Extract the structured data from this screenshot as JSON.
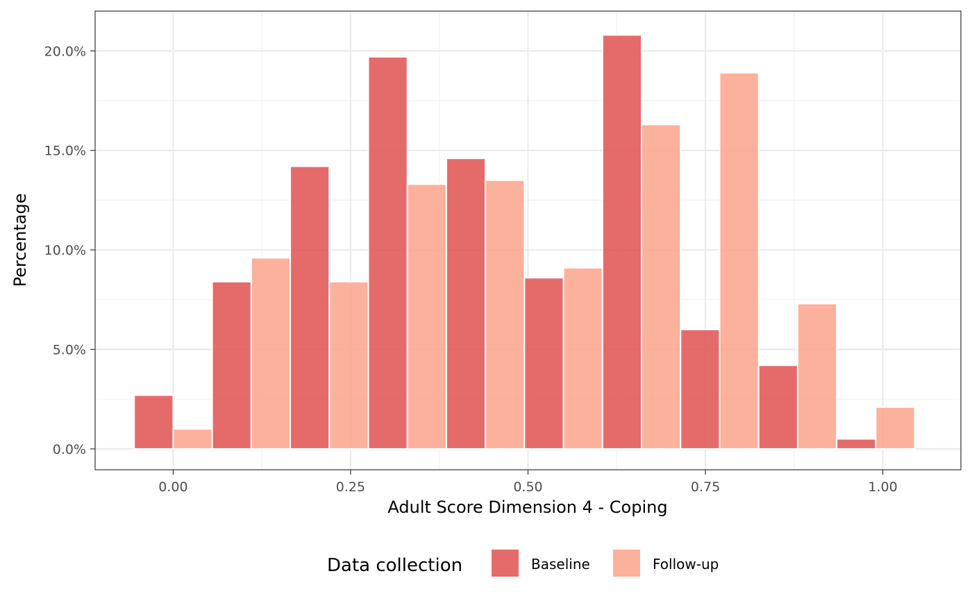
{
  "chart_data": {
    "type": "bar",
    "xlabel": "Adult Score Dimension 4 - Coping",
    "ylabel": "Percentage",
    "xlim": [
      -0.11,
      1.11
    ],
    "ylim": [
      -1.05,
      22.0
    ],
    "x_ticks": [
      0.0,
      0.25,
      0.5,
      0.75,
      1.0
    ],
    "x_tick_labels": [
      "0.00",
      "0.25",
      "0.50",
      "0.75",
      "1.00"
    ],
    "y_ticks": [
      0,
      5,
      10,
      15,
      20
    ],
    "y_tick_labels": [
      "0.0%",
      "5.0%",
      "10.0%",
      "15.0%",
      "20.0%"
    ],
    "y_unit": "%",
    "grid": true,
    "bin_width": 0.11,
    "bin_centers": [
      0.0,
      0.11,
      0.22,
      0.33,
      0.44,
      0.55,
      0.66,
      0.77,
      0.88,
      0.99
    ],
    "series": [
      {
        "name": "Baseline",
        "color": "#e15656",
        "values": [
          2.7,
          8.4,
          14.2,
          19.7,
          14.6,
          8.6,
          20.8,
          6.0,
          4.2,
          0.5
        ]
      },
      {
        "name": "Follow-up",
        "color": "#fca68e",
        "values": [
          1.0,
          9.6,
          8.4,
          13.3,
          13.5,
          9.1,
          16.3,
          18.9,
          7.3,
          2.1
        ]
      }
    ],
    "legend": {
      "title": "Data collection",
      "position": "bottom"
    }
  }
}
